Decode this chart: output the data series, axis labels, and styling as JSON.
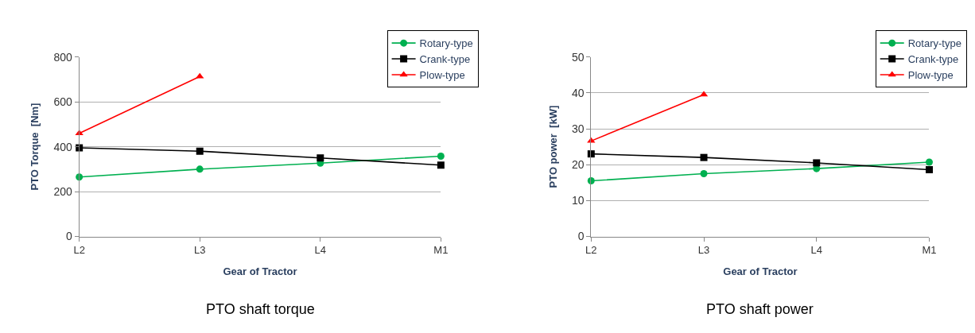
{
  "chart_data": [
    {
      "type": "line",
      "title": "PTO shaft torque",
      "xlabel": "Gear of Tractor",
      "ylabel": "PTO Torque  [Nm]",
      "categories": [
        "L2",
        "L3",
        "L4",
        "M1"
      ],
      "ylim": [
        0,
        800
      ],
      "yticks": [
        0,
        200,
        400,
        600,
        800
      ],
      "grid": "y",
      "legend": "top right",
      "line_style": "solid",
      "series": [
        {
          "name": "Rotary-type",
          "color": "#00b050",
          "marker": "circle",
          "values": [
            265,
            300,
            327,
            358
          ]
        },
        {
          "name": "Crank-type",
          "color": "#000000",
          "marker": "square",
          "values": [
            395,
            380,
            350,
            318
          ]
        },
        {
          "name": "Plow-type",
          "color": "#ff0000",
          "marker": "triangle",
          "values": [
            460,
            713,
            null,
            null
          ]
        }
      ]
    },
    {
      "type": "line",
      "title": "PTO shaft power",
      "xlabel": "Gear of Tractor",
      "ylabel": "PTO power  [kW]",
      "categories": [
        "L2",
        "L3",
        "L4",
        "M1"
      ],
      "ylim": [
        0,
        50
      ],
      "yticks": [
        0,
        10,
        20,
        30,
        40,
        50
      ],
      "grid": "y",
      "legend": "top right",
      "line_style": "solid",
      "series": [
        {
          "name": "Rotary-type",
          "color": "#00b050",
          "marker": "circle",
          "values": [
            15.5,
            17.5,
            18.9,
            20.7
          ]
        },
        {
          "name": "Crank-type",
          "color": "#000000",
          "marker": "square",
          "values": [
            23,
            22,
            20.5,
            18.6
          ]
        },
        {
          "name": "Plow-type",
          "color": "#ff0000",
          "marker": "triangle",
          "values": [
            26.6,
            39.5,
            null,
            null
          ]
        }
      ]
    }
  ]
}
